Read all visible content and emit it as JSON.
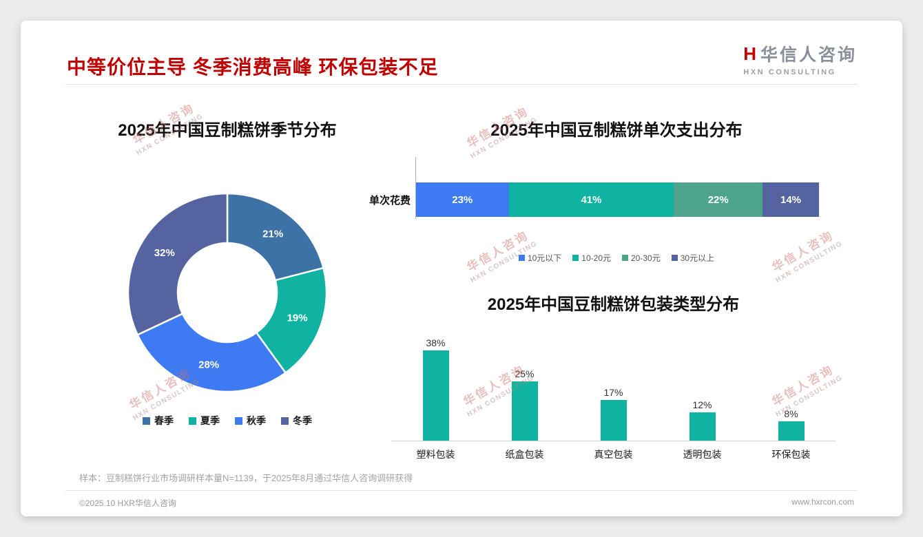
{
  "page": {
    "title": "中等价位主导 冬季消费高峰 环保包装不足",
    "logo": {
      "icon": "H",
      "name": "华信人咨询",
      "sub": "HXN CONSULTING"
    },
    "watermark": {
      "line1": "华信人咨询",
      "line2": "HXN CONSULTING"
    },
    "footnote": "样本：豆制糕饼行业市场调研样本量N=1139，于2025年8月通过华信人咨询调研获得",
    "footer_left": "©2025.10 HXR华信人咨询",
    "footer_right": "www.hxrcon.com",
    "accent_color": "#c00000"
  },
  "chart_data": [
    {
      "type": "pie",
      "donut": true,
      "title": "2025年中国豆制糕饼季节分布",
      "categories": [
        "春季",
        "夏季",
        "秋季",
        "冬季"
      ],
      "values": [
        21,
        19,
        28,
        32
      ],
      "labels": [
        "21%",
        "19%",
        "28%",
        "32%"
      ],
      "colors": [
        "#3d72a6",
        "#10b3a1",
        "#3e7bf2",
        "#5564a0"
      ],
      "legend_position": "bottom"
    },
    {
      "type": "bar",
      "orientation": "horizontal-stacked",
      "title": "2025年中国豆制糕饼单次支出分布",
      "row_label": "单次花费",
      "categories": [
        "10元以下",
        "10-20元",
        "20-30元",
        "30元以上"
      ],
      "values": [
        23,
        41,
        22,
        14
      ],
      "labels": [
        "23%",
        "41%",
        "22%",
        "14%"
      ],
      "colors": [
        "#3e7bf2",
        "#10b3a1",
        "#4ea38c",
        "#5564a0"
      ],
      "legend_position": "bottom",
      "xlim": [
        0,
        100
      ]
    },
    {
      "type": "bar",
      "title": "2025年中国豆制糕饼包装类型分布",
      "categories": [
        "塑料包装",
        "纸盒包装",
        "真空包装",
        "透明包装",
        "环保包装"
      ],
      "values": [
        38,
        25,
        17,
        12,
        8
      ],
      "labels": [
        "38%",
        "25%",
        "17%",
        "12%",
        "8%"
      ],
      "color": "#10b3a1",
      "ylim": [
        0,
        40
      ],
      "grid": false
    }
  ]
}
